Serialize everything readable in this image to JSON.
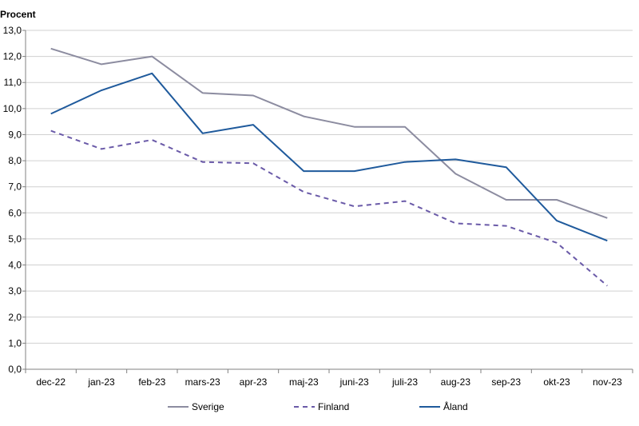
{
  "chart_data": {
    "type": "line",
    "ylabel": "Procent",
    "categories": [
      "dec-22",
      "jan-23",
      "feb-23",
      "mars-23",
      "apr-23",
      "maj-23",
      "juni-23",
      "juli-23",
      "aug-23",
      "sep-23",
      "okt-23",
      "nov-23"
    ],
    "ylim": [
      0,
      13
    ],
    "yticks": [
      "0,0",
      "1,0",
      "2,0",
      "3,0",
      "4,0",
      "5,0",
      "6,0",
      "7,0",
      "8,0",
      "9,0",
      "10,0",
      "11,0",
      "12,0",
      "13,0"
    ],
    "grid": true,
    "legend": "bottom",
    "series": [
      {
        "name": "Sverige",
        "color": "#8c8ca0",
        "dash": "solid",
        "values": [
          12.3,
          11.7,
          12.0,
          10.6,
          10.5,
          9.7,
          9.3,
          9.3,
          7.5,
          6.5,
          6.5,
          5.8
        ]
      },
      {
        "name": "Finland",
        "color": "#6a5aa8",
        "dash": "dashed",
        "values": [
          9.15,
          8.45,
          8.8,
          7.95,
          7.9,
          6.8,
          6.25,
          6.45,
          5.6,
          5.5,
          4.85,
          3.2
        ]
      },
      {
        "name": "Åland",
        "color": "#1f5a9c",
        "dash": "solid",
        "values": [
          9.8,
          10.7,
          11.35,
          9.05,
          9.38,
          7.6,
          7.6,
          7.95,
          8.05,
          7.75,
          5.7,
          4.93
        ]
      }
    ]
  }
}
